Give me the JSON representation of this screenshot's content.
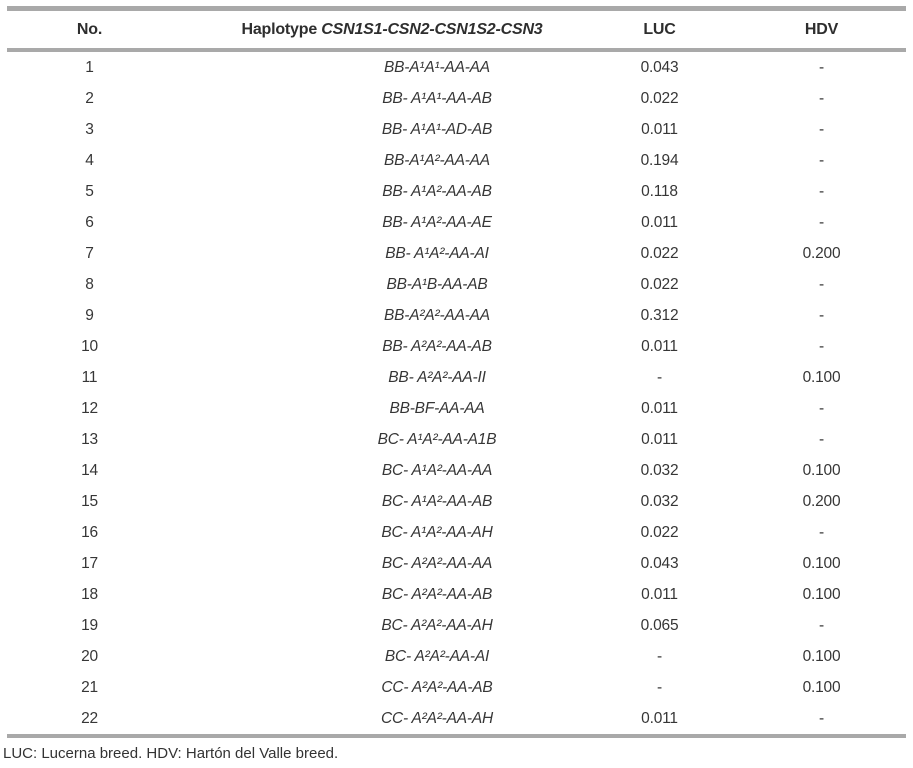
{
  "table": {
    "columns": {
      "no": "No.",
      "haplotype_prefix": "Haplotype ",
      "haplotype_genes": "CSN1S1-CSN2-CSN1S2-CSN3",
      "luc": "LUC",
      "hdv": "HDV"
    },
    "rows": [
      {
        "no": "1",
        "haplotype": "BB-A¹A¹-AA-AA",
        "luc": "0.043",
        "hdv": "-"
      },
      {
        "no": "2",
        "haplotype": "BB- A¹A¹-AA-AB",
        "luc": "0.022",
        "hdv": "-"
      },
      {
        "no": "3",
        "haplotype": "BB- A¹A¹-AD-AB",
        "luc": "0.011",
        "hdv": "-"
      },
      {
        "no": "4",
        "haplotype": "BB-A¹A²-AA-AA",
        "luc": "0.194",
        "hdv": "-"
      },
      {
        "no": "5",
        "haplotype": "BB- A¹A²-AA-AB",
        "luc": "0.118",
        "hdv": "-"
      },
      {
        "no": "6",
        "haplotype": "BB- A¹A²-AA-AE",
        "luc": "0.011",
        "hdv": "-"
      },
      {
        "no": "7",
        "haplotype": "BB- A¹A²-AA-AI",
        "luc": "0.022",
        "hdv": "0.200"
      },
      {
        "no": "8",
        "haplotype": "BB-A¹B-AA-AB",
        "luc": "0.022",
        "hdv": "-"
      },
      {
        "no": "9",
        "haplotype": "BB-A²A²-AA-AA",
        "luc": "0.312",
        "hdv": "-"
      },
      {
        "no": "10",
        "haplotype": "BB- A²A²-AA-AB",
        "luc": "0.011",
        "hdv": "-"
      },
      {
        "no": "11",
        "haplotype": "BB- A²A²-AA-II",
        "luc": "-",
        "hdv": "0.100"
      },
      {
        "no": "12",
        "haplotype": "BB-BF-AA-AA",
        "luc": "0.011",
        "hdv": "-"
      },
      {
        "no": "13",
        "haplotype": "BC- A¹A²-AA-A1B",
        "luc": "0.011",
        "hdv": "-"
      },
      {
        "no": "14",
        "haplotype": "BC- A¹A²-AA-AA",
        "luc": "0.032",
        "hdv": "0.100"
      },
      {
        "no": "15",
        "haplotype": "BC- A¹A²-AA-AB",
        "luc": "0.032",
        "hdv": "0.200"
      },
      {
        "no": "16",
        "haplotype": "BC- A¹A²-AA-AH",
        "luc": "0.022",
        "hdv": "-"
      },
      {
        "no": "17",
        "haplotype": "BC- A²A²-AA-AA",
        "luc": "0.043",
        "hdv": "0.100"
      },
      {
        "no": "18",
        "haplotype": "BC- A²A²-AA-AB",
        "luc": "0.011",
        "hdv": "0.100"
      },
      {
        "no": "19",
        "haplotype": "BC- A²A²-AA-AH",
        "luc": "0.065",
        "hdv": "-"
      },
      {
        "no": "20",
        "haplotype": "BC- A²A²-AA-AI",
        "luc": "-",
        "hdv": "0.100"
      },
      {
        "no": "21",
        "haplotype": "CC- A²A²-AA-AB",
        "luc": "-",
        "hdv": "0.100"
      },
      {
        "no": "22",
        "haplotype": "CC- A²A²-AA-AH",
        "luc": "0.011",
        "hdv": "-"
      }
    ],
    "footnote": "LUC: Lucerna breed. HDV: Hartón del Valle breed.",
    "colors": {
      "rule_gray": "#a9a9a9",
      "text": "#363636"
    }
  }
}
